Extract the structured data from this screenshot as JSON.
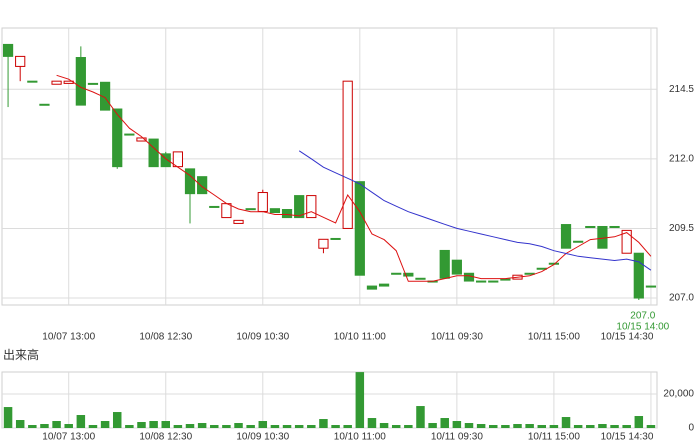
{
  "chart_data": [
    {
      "type": "candlestick",
      "categories": [
        null,
        null,
        null,
        null,
        null,
        "10/07 13:00",
        null,
        null,
        null,
        null,
        null,
        null,
        null,
        "10/08 12:30",
        null,
        null,
        null,
        null,
        null,
        null,
        null,
        "10/09 10:30",
        null,
        null,
        null,
        null,
        null,
        null,
        null,
        "10/10 11:00",
        null,
        null,
        null,
        null,
        null,
        null,
        null,
        "10/11 09:30",
        null,
        null,
        null,
        null,
        null,
        null,
        null,
        "10/11 15:00",
        null,
        null,
        null,
        null,
        null,
        null,
        null,
        "10/15 14:30"
      ],
      "open": [
        216.11,
        215.32,
        214.79,
        213.96,
        214.68,
        214.71,
        215.64,
        214.71,
        214.75,
        213.79,
        212.89,
        212.64,
        212.71,
        212.18,
        211.72,
        211.64,
        211.36,
        210.29,
        209.89,
        209.68,
        210.21,
        210.11,
        210.21,
        210.18,
        210.68,
        209.89,
        208.79,
        209.14,
        209.5,
        211.18,
        207.43,
        207.5,
        207.89,
        207.89,
        207.71,
        207.61,
        208.71,
        208.36,
        207.89,
        207.61,
        207.61,
        207.68,
        207.68,
        207.89,
        208.07,
        208.25,
        209.64,
        209.04,
        209.57,
        209.57,
        209.57,
        208.61,
        208.61,
        207.43
      ],
      "high": [
        216.11,
        215.68,
        214.79,
        213.96,
        214.79,
        214.79,
        216.04,
        214.71,
        214.75,
        213.79,
        212.89,
        212.75,
        212.71,
        212.25,
        212.25,
        211.64,
        211.36,
        210.29,
        210.39,
        209.79,
        210.21,
        210.89,
        210.21,
        210.18,
        210.68,
        210.68,
        209.11,
        209.14,
        214.79,
        211.18,
        207.43,
        207.5,
        207.89,
        207.89,
        207.71,
        207.61,
        208.71,
        208.36,
        207.89,
        207.61,
        207.61,
        207.68,
        207.82,
        207.89,
        208.07,
        208.25,
        209.64,
        209.04,
        209.57,
        209.57,
        209.57,
        209.43,
        208.61,
        207.43
      ],
      "low": [
        213.86,
        214.79,
        214.79,
        213.96,
        214.68,
        214.71,
        213.93,
        214.71,
        213.75,
        211.64,
        212.89,
        212.64,
        211.72,
        211.72,
        211.72,
        209.68,
        210.75,
        210.29,
        209.89,
        209.68,
        210.21,
        210.11,
        210.07,
        209.89,
        209.89,
        209.89,
        208.61,
        209.14,
        209.5,
        207.82,
        207.32,
        207.43,
        207.89,
        207.79,
        207.71,
        207.61,
        207.71,
        207.86,
        207.61,
        207.61,
        207.61,
        207.68,
        207.68,
        207.89,
        208.07,
        208.25,
        208.79,
        209.04,
        209.57,
        208.79,
        209.57,
        208.61,
        206.93,
        207.43
      ],
      "close": [
        215.68,
        215.68,
        214.79,
        213.96,
        214.79,
        214.79,
        213.93,
        214.71,
        213.75,
        211.72,
        212.89,
        212.75,
        211.72,
        211.72,
        212.25,
        210.75,
        210.75,
        210.29,
        210.39,
        209.79,
        210.21,
        210.79,
        210.07,
        209.89,
        209.89,
        210.68,
        209.11,
        209.14,
        214.79,
        207.82,
        207.32,
        207.43,
        207.89,
        207.79,
        207.71,
        207.61,
        207.71,
        207.86,
        207.61,
        207.61,
        207.61,
        207.68,
        207.82,
        207.89,
        208.07,
        208.25,
        208.79,
        209.04,
        209.57,
        208.79,
        209.57,
        209.43,
        207.0,
        207.43
      ],
      "up_color": "#cc0000",
      "down_color": "#339933",
      "lines": [
        {
          "color": "#dd1111",
          "values": [
            null,
            null,
            null,
            null,
            215.0,
            214.86,
            214.57,
            214.4,
            214.2,
            213.6,
            213.1,
            212.8,
            212.4,
            212.0,
            211.7,
            211.4,
            211.0,
            210.7,
            210.4,
            210.2,
            210.1,
            210.1,
            210.0,
            210.0,
            209.95,
            210.1,
            209.9,
            209.7,
            210.7,
            210.1,
            209.3,
            209.1,
            208.7,
            207.6,
            207.6,
            207.6,
            207.7,
            207.8,
            207.8,
            207.7,
            207.7,
            207.7,
            207.75,
            207.8,
            207.95,
            208.2,
            208.6,
            208.85,
            209.1,
            209.15,
            209.2,
            209.35,
            209.0,
            208.5
          ]
        },
        {
          "color": "#3333cc",
          "values": [
            null,
            null,
            null,
            null,
            null,
            null,
            null,
            null,
            null,
            null,
            null,
            null,
            null,
            null,
            null,
            null,
            null,
            null,
            null,
            null,
            null,
            null,
            null,
            null,
            212.29,
            212.0,
            211.7,
            211.5,
            211.3,
            211.1,
            210.8,
            210.5,
            210.3,
            210.1,
            209.95,
            209.8,
            209.65,
            209.5,
            209.4,
            209.3,
            209.2,
            209.1,
            209.0,
            208.95,
            208.85,
            208.7,
            208.6,
            208.5,
            208.45,
            208.4,
            208.35,
            208.4,
            208.3,
            208.0
          ]
        }
      ],
      "ylim": [
        206.75,
        216.7
      ],
      "yticks": [
        {
          "value": 207,
          "label": "207.0"
        },
        209.5,
        {
          "value": 212,
          "label": "212.0"
        },
        214.5
      ],
      "annotations": [
        "207.0",
        "10/15 14:00"
      ],
      "grid": true
    },
    {
      "type": "bar",
      "title": "出来高",
      "categories": [
        null,
        null,
        null,
        null,
        null,
        "10/07 13:00",
        null,
        null,
        null,
        null,
        null,
        null,
        null,
        "10/08 12:30",
        null,
        null,
        null,
        null,
        null,
        null,
        null,
        "10/09 10:30",
        null,
        null,
        null,
        null,
        null,
        null,
        null,
        "10/10 11:00",
        null,
        null,
        null,
        null,
        null,
        null,
        null,
        "10/11 09:30",
        null,
        null,
        null,
        null,
        null,
        null,
        null,
        "10/11 15:00",
        null,
        null,
        null,
        null,
        null,
        null,
        null,
        "10/15 14:30"
      ],
      "values": [
        12350,
        4710,
        1760,
        2350,
        4120,
        2350,
        7650,
        1760,
        4120,
        9410,
        1760,
        3530,
        4120,
        4120,
        1760,
        2350,
        2940,
        1760,
        1760,
        2940,
        1760,
        4120,
        1760,
        1760,
        1760,
        1760,
        5290,
        1760,
        1760,
        32940,
        5880,
        2940,
        1760,
        1760,
        12940,
        2940,
        5880,
        4120,
        2940,
        2350,
        1760,
        1760,
        2350,
        2350,
        1760,
        1760,
        6470,
        1760,
        1760,
        2350,
        1760,
        1760,
        7060,
        1760
      ],
      "color": "#339933",
      "ylim": [
        0,
        33000
      ],
      "yticks": [
        0,
        {
          "value": 20000,
          "label": "20,000"
        }
      ],
      "grid": true
    }
  ]
}
